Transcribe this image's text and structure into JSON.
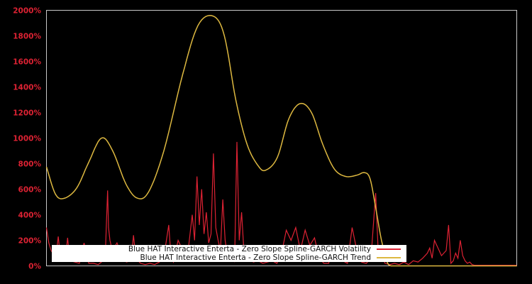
{
  "chart_data": {
    "type": "line",
    "title": "",
    "xlabel": "",
    "ylabel": "",
    "ylim": [
      0,
      2000
    ],
    "y_ticks": [
      "0%",
      "200%",
      "400%",
      "600%",
      "800%",
      "1000%",
      "1200%",
      "1400%",
      "1600%",
      "1800%",
      "2000%"
    ],
    "x_ticks": [],
    "grid": false,
    "legend_position": "lower-center",
    "background": "#000000",
    "series": [
      {
        "name": "Blue HAT Interactive Enterta - Zero Slope Spline-GARCH Volatility",
        "color": "#dd2233",
        "x_frac": [
          0.0,
          0.005,
          0.01,
          0.02,
          0.025,
          0.03,
          0.04,
          0.045,
          0.05,
          0.06,
          0.07,
          0.08,
          0.09,
          0.1,
          0.11,
          0.12,
          0.125,
          0.13,
          0.132,
          0.135,
          0.14,
          0.15,
          0.16,
          0.17,
          0.18,
          0.185,
          0.19,
          0.2,
          0.21,
          0.22,
          0.23,
          0.24,
          0.25,
          0.26,
          0.265,
          0.27,
          0.28,
          0.29,
          0.3,
          0.305,
          0.31,
          0.315,
          0.32,
          0.325,
          0.33,
          0.335,
          0.34,
          0.345,
          0.35,
          0.355,
          0.36,
          0.365,
          0.37,
          0.375,
          0.38,
          0.385,
          0.39,
          0.395,
          0.4,
          0.405,
          0.41,
          0.415,
          0.42,
          0.43,
          0.44,
          0.45,
          0.46,
          0.47,
          0.48,
          0.49,
          0.5,
          0.51,
          0.52,
          0.53,
          0.54,
          0.55,
          0.56,
          0.57,
          0.58,
          0.59,
          0.6,
          0.61,
          0.62,
          0.63,
          0.64,
          0.65,
          0.66,
          0.67,
          0.68,
          0.69,
          0.7,
          0.705,
          0.71,
          0.72,
          0.73,
          0.74,
          0.75,
          0.76,
          0.77,
          0.78,
          0.79,
          0.8,
          0.81,
          0.815,
          0.82,
          0.825,
          0.83,
          0.84,
          0.85,
          0.855,
          0.86,
          0.865,
          0.87,
          0.875,
          0.88,
          0.885,
          0.89,
          0.895,
          0.9,
          0.905,
          0.91,
          0.915,
          0.92,
          0.925,
          0.93,
          0.935,
          0.94,
          0.95,
          0.96,
          0.97,
          0.98,
          1.0
        ],
        "values": [
          300,
          180,
          120,
          60,
          230,
          60,
          40,
          220,
          40,
          30,
          20,
          180,
          20,
          20,
          10,
          40,
          80,
          590,
          300,
          200,
          120,
          180,
          80,
          30,
          40,
          240,
          60,
          20,
          10,
          20,
          10,
          30,
          80,
          320,
          60,
          30,
          200,
          120,
          80,
          240,
          400,
          200,
          700,
          320,
          600,
          250,
          420,
          180,
          250,
          880,
          300,
          200,
          120,
          520,
          200,
          80,
          60,
          120,
          30,
          970,
          200,
          420,
          100,
          60,
          30,
          40,
          20,
          30,
          40,
          20,
          100,
          280,
          200,
          300,
          120,
          280,
          160,
          220,
          60,
          20,
          20,
          150,
          60,
          40,
          20,
          300,
          120,
          30,
          20,
          60,
          570,
          150,
          100,
          20,
          10,
          20,
          10,
          30,
          10,
          40,
          30,
          60,
          100,
          140,
          60,
          200,
          160,
          80,
          120,
          320,
          20,
          40,
          100,
          60,
          200,
          80,
          40,
          20,
          30,
          10,
          5,
          5,
          5,
          5,
          5,
          5,
          5,
          5,
          5,
          5,
          5,
          5,
          5,
          5,
          5,
          5
        ]
      },
      {
        "name": "Blue HAT Interactive Enterta - Zero Slope Spline-GARCH Trend",
        "color": "#ddb840",
        "points_pct_of_plot_width": [
          [
            0.0,
            775
          ],
          [
            0.024,
            560
          ],
          [
            0.048,
            530
          ],
          [
            0.08,
            610
          ],
          [
            0.11,
            800
          ],
          [
            0.145,
            1000
          ],
          [
            0.175,
            900
          ],
          [
            0.21,
            640
          ],
          [
            0.24,
            530
          ],
          [
            0.27,
            580
          ],
          [
            0.31,
            900
          ],
          [
            0.36,
            1500
          ],
          [
            0.4,
            1880
          ],
          [
            0.44,
            1955
          ],
          [
            0.47,
            1800
          ],
          [
            0.5,
            1300
          ],
          [
            0.53,
            950
          ],
          [
            0.56,
            780
          ],
          [
            0.58,
            750
          ],
          [
            0.61,
            850
          ],
          [
            0.64,
            1150
          ],
          [
            0.67,
            1270
          ],
          [
            0.7,
            1200
          ],
          [
            0.73,
            950
          ],
          [
            0.76,
            760
          ],
          [
            0.79,
            700
          ],
          [
            0.82,
            710
          ],
          [
            0.84,
            730
          ],
          [
            0.855,
            680
          ],
          [
            0.87,
            450
          ],
          [
            0.885,
            200
          ],
          [
            0.9,
            30
          ],
          [
            0.91,
            0
          ]
        ],
        "note": "trend x positions relative to first ~66% of the span; remainder ~0"
      }
    ]
  },
  "legend": {
    "items": [
      {
        "label": "Blue HAT Interactive Enterta - Zero Slope Spline-GARCH Volatility",
        "color": "#dd2233"
      },
      {
        "label": "Blue HAT Interactive Enterta - Zero Slope Spline-GARCH Trend",
        "color": "#ddb840"
      }
    ]
  },
  "colors": {
    "volatility": "#dd2233",
    "trend": "#ddb840",
    "axis": "#c8c8c8",
    "tick_label": "#dd2233",
    "background": "#000000"
  }
}
